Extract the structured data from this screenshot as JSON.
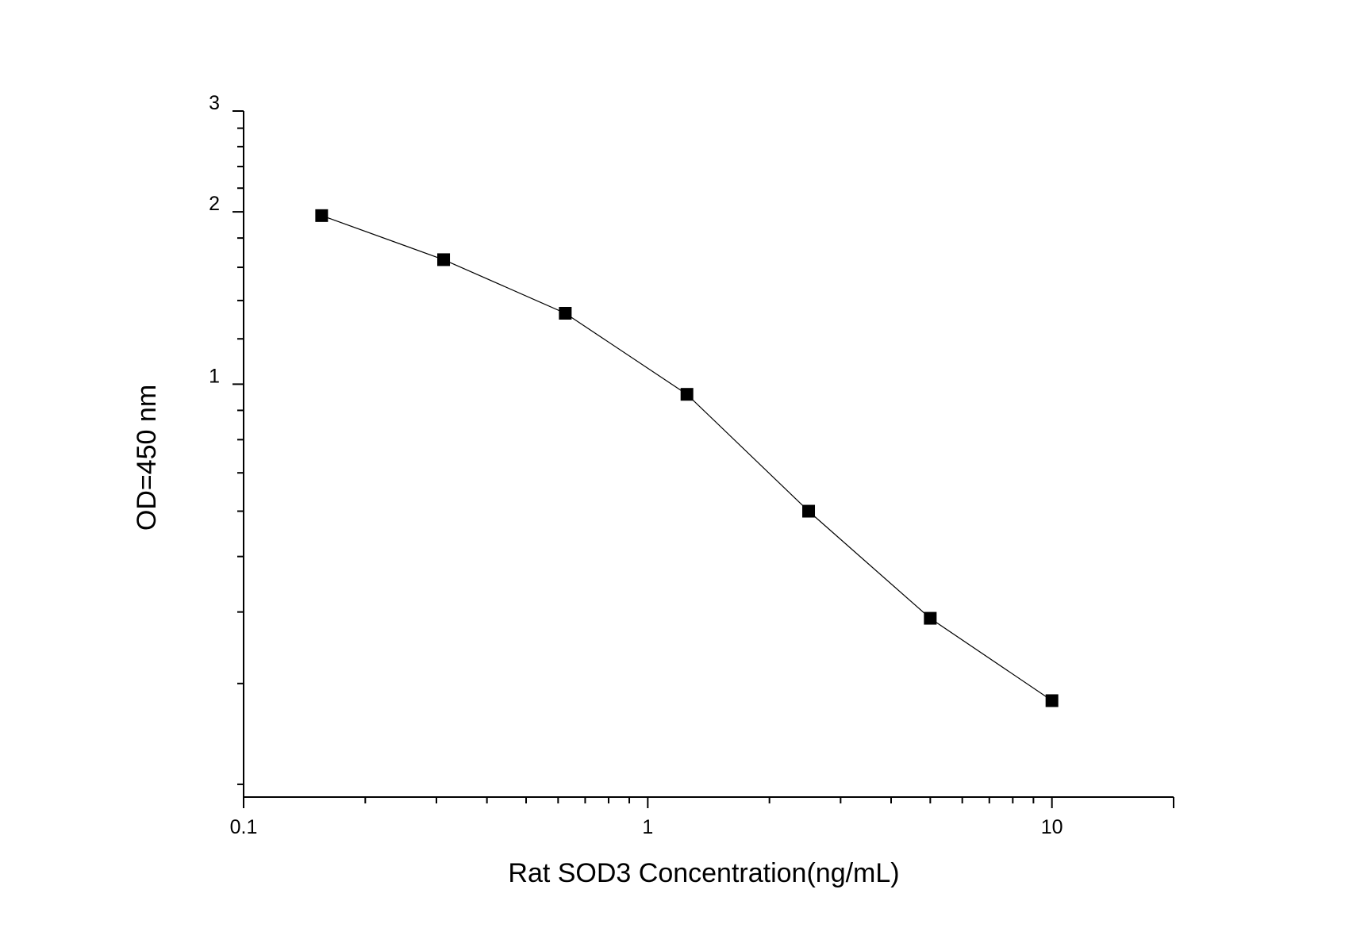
{
  "chart_data": {
    "type": "line",
    "xlabel": "Rat SOD3  Concentration(ng/mL)",
    "ylabel": "OD=450 nm",
    "xscale": "log",
    "yscale": "log",
    "xlim": [
      0.1,
      20
    ],
    "ylim": [
      0.19,
      3
    ],
    "xticks": [
      {
        "value": 0.1,
        "label": "0.1"
      },
      {
        "value": 1,
        "label": "1"
      },
      {
        "value": 10,
        "label": "10"
      }
    ],
    "yticks": [
      {
        "value": 1,
        "label": "1"
      },
      {
        "value": 2,
        "label": "2"
      },
      {
        "value": 3,
        "label": "3"
      }
    ],
    "grid": false,
    "marker": "square",
    "colors": {
      "line": "#000000",
      "marker": "#000000",
      "axis": "#000000"
    },
    "series": [
      {
        "x": [
          0.156,
          0.3125,
          0.625,
          1.25,
          2.5,
          5,
          10
        ],
        "y": [
          1.97,
          1.65,
          1.33,
          0.96,
          0.6,
          0.39,
          0.28
        ]
      }
    ]
  }
}
